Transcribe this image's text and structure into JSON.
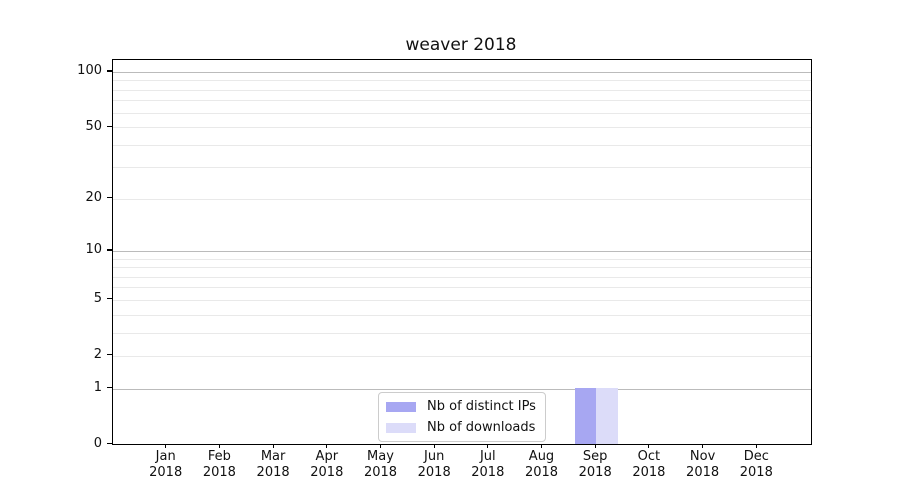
{
  "title": "weaver 2018",
  "chart_data": {
    "type": "bar",
    "title": "weaver 2018",
    "categories": [
      "Jan 2018",
      "Feb 2018",
      "Mar 2018",
      "Apr 2018",
      "May 2018",
      "Jun 2018",
      "Jul 2018",
      "Aug 2018",
      "Sep 2018",
      "Oct 2018",
      "Nov 2018",
      "Dec 2018"
    ],
    "series": [
      {
        "name": "Nb of distinct IPs",
        "color": "#a7a7f2",
        "values": [
          0,
          0,
          0,
          0,
          0,
          0,
          0,
          0,
          1,
          0,
          0,
          0
        ]
      },
      {
        "name": "Nb of downloads",
        "color": "#dcdcf9",
        "values": [
          0,
          0,
          0,
          0,
          0,
          0,
          0,
          0,
          1,
          0,
          0,
          0
        ]
      }
    ],
    "xlabel": "",
    "ylabel": "",
    "yscale": "log1p",
    "ylim": [
      0,
      116
    ],
    "y_tick_labels": [
      0,
      1,
      2,
      5,
      10,
      20,
      50,
      100
    ],
    "y_major_gridlines": [
      1,
      10,
      100
    ],
    "y_minor_gridlines": [
      2,
      3,
      4,
      5,
      6,
      7,
      8,
      9,
      20,
      30,
      40,
      50,
      60,
      70,
      80,
      90
    ],
    "grid": true,
    "legend_position": "lower center"
  },
  "legend": {
    "items": [
      "Nb of distinct IPs",
      "Nb of downloads"
    ]
  },
  "colors": {
    "distinct_ips": "#a7a7f2",
    "downloads": "#dcdcf9",
    "major_grid": "#bbbbbb",
    "minor_grid": "#e9e9e9",
    "spine": "#000000",
    "legend_border": "#cccccc",
    "text": "#111111",
    "background": "#ffffff"
  }
}
